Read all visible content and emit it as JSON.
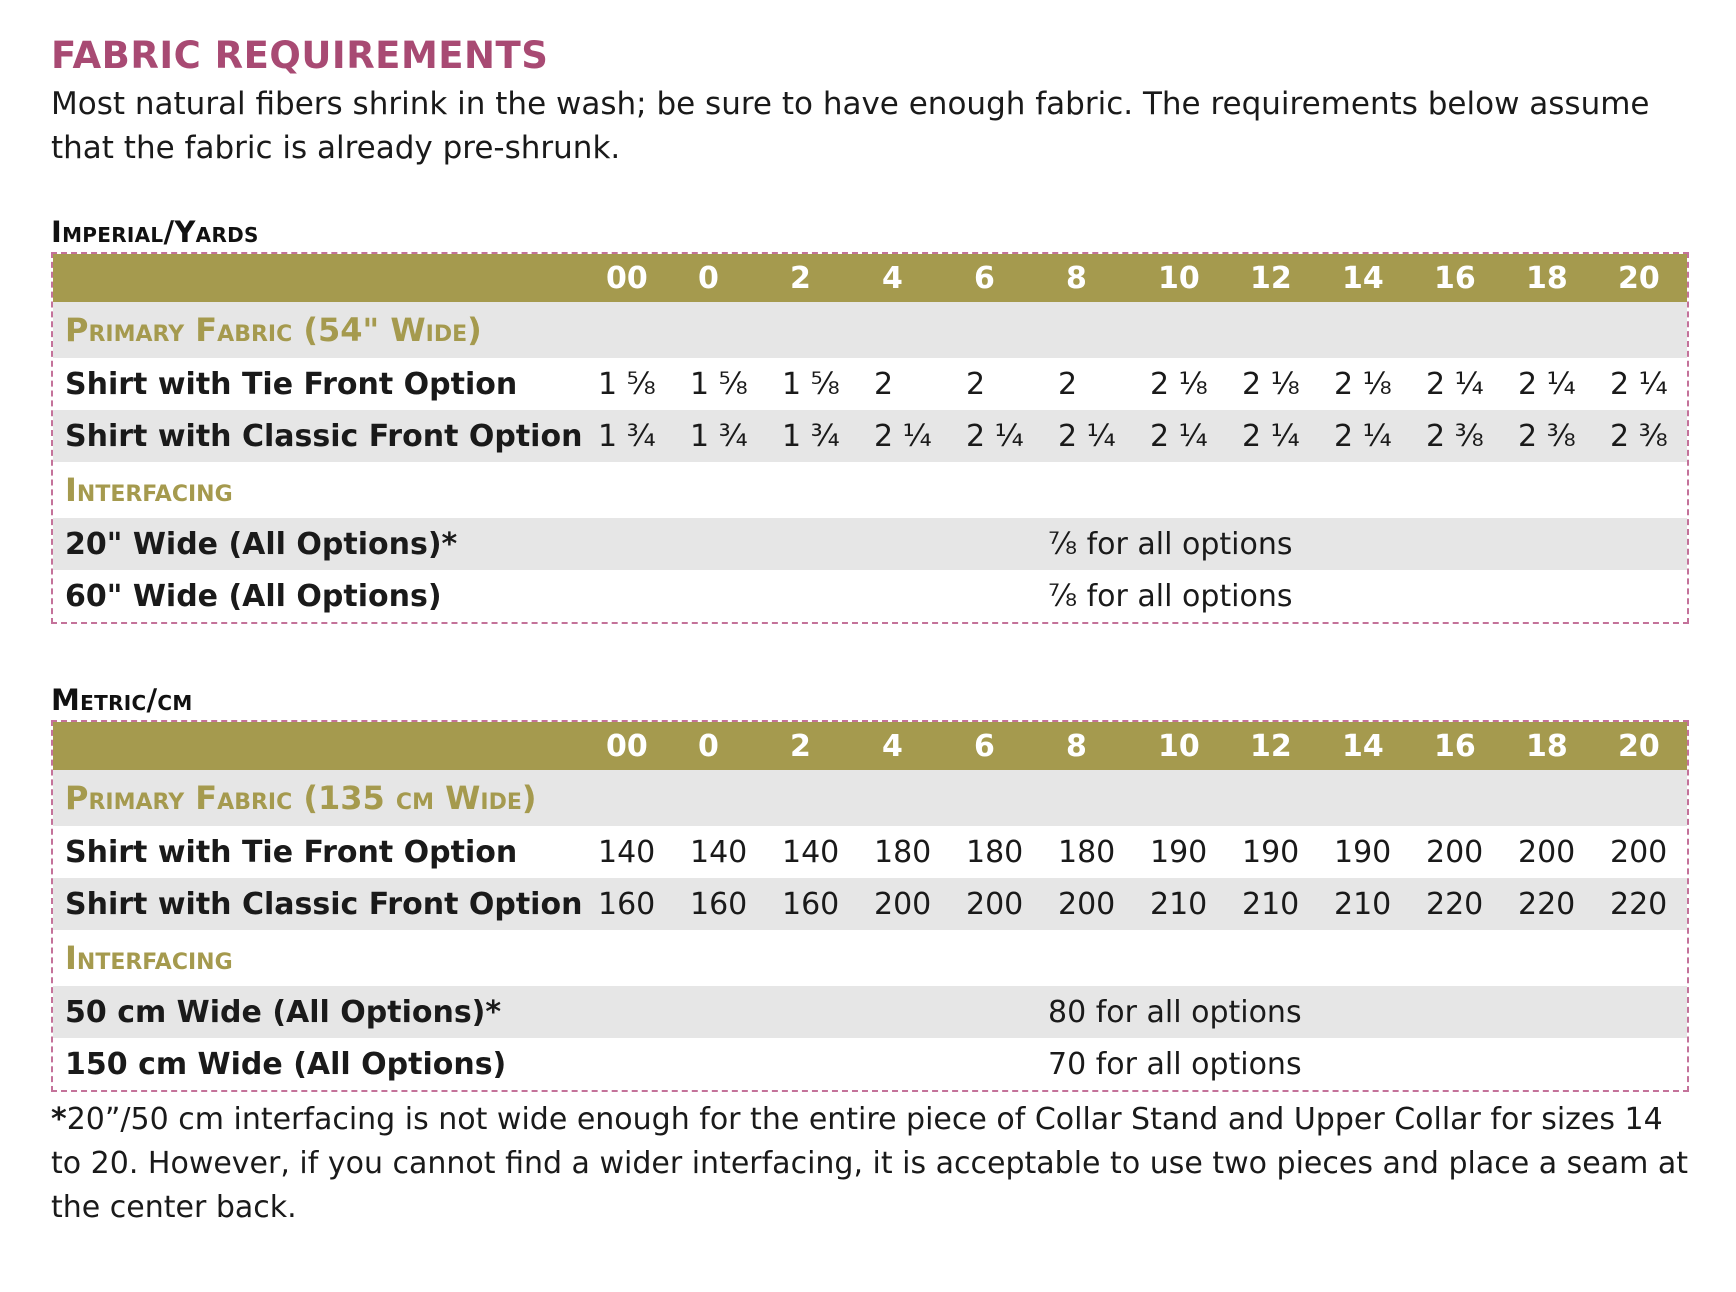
{
  "title": "FABRIC REQUIREMENTS",
  "intro": "Most natural fibers shrink in the wash; be sure to have enough fabric. The requirements below assume that the fabric is already pre-shrunk.",
  "sizes": [
    "00",
    "0",
    "2",
    "4",
    "6",
    "8",
    "10",
    "12",
    "14",
    "16",
    "18",
    "20"
  ],
  "imperial": {
    "label": "Imperial/Yards",
    "primary_heading": "Primary Fabric (54\" Wide)",
    "rows": [
      {
        "label": "Shirt with Tie Front Option",
        "values": [
          "1 ⅝",
          "1 ⅝",
          "1 ⅝",
          "2",
          "2",
          "2",
          "2 ⅛",
          "2 ⅛",
          "2 ⅛",
          "2 ¼",
          "2 ¼",
          "2 ¼"
        ]
      },
      {
        "label": "Shirt with Classic Front Option",
        "values": [
          "1 ¾",
          "1 ¾",
          "1 ¾",
          "2 ¼",
          "2 ¼",
          "2 ¼",
          "2 ¼",
          "2 ¼",
          "2 ¼",
          "2 ⅜",
          "2 ⅜",
          "2 ⅜"
        ]
      }
    ],
    "interfacing_heading": "Interfacing",
    "interfacing": [
      {
        "label": "20\" Wide (All Options)*",
        "value": "⅞ for all options"
      },
      {
        "label": "60\" Wide (All Options)",
        "value": "⅞ for all options"
      }
    ]
  },
  "metric": {
    "label": "Metric/cm",
    "primary_heading": "Primary Fabric (135 cm Wide)",
    "rows": [
      {
        "label": "Shirt with Tie Front Option",
        "values": [
          "140",
          "140",
          "140",
          "180",
          "180",
          "180",
          "190",
          "190",
          "190",
          "200",
          "200",
          "200"
        ]
      },
      {
        "label": "Shirt with Classic Front Option",
        "values": [
          "160",
          "160",
          "160",
          "200",
          "200",
          "200",
          "210",
          "210",
          "210",
          "220",
          "220",
          "220"
        ]
      }
    ],
    "interfacing_heading": "Interfacing",
    "interfacing": [
      {
        "label": "50 cm Wide (All Options)*",
        "value": "80 for all options"
      },
      {
        "label": "150 cm Wide (All Options)",
        "value": "70 for all options"
      }
    ]
  },
  "footnote": {
    "star": "*",
    "text": "20”/50 cm interfacing is not wide enough for the entire piece of Collar Stand and Upper Collar for sizes 14 to 20. However, if you cannot find a wider interfacing, it is acceptable to use two pieces and place a seam at the center back."
  },
  "colors": {
    "title": "#a84a73",
    "header_bg": "#a59a4e",
    "category_text": "#a59a4e",
    "row_grey": "#e6e6e6",
    "border": "#c4729a"
  }
}
